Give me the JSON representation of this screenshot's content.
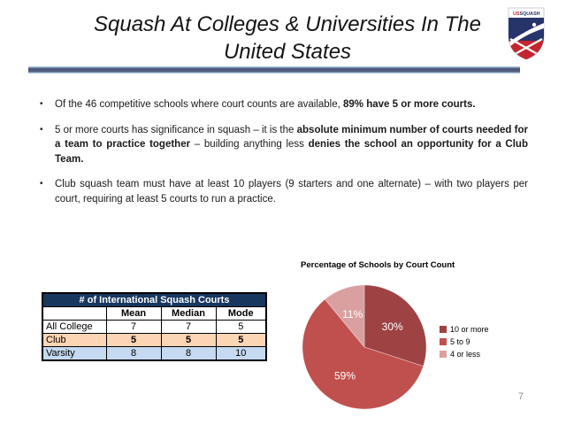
{
  "slide": {
    "title_line1": "Squash At Colleges & Universities In The",
    "title_line2": "United States",
    "bullet_char": "•",
    "page_number": "7"
  },
  "logo": {
    "us": "US",
    "squash": "SQUASH"
  },
  "bullets": [
    {
      "seg0": "Of the 46 competitive schools where court counts are available, ",
      "seg1": "89% have 5 or more courts."
    },
    {
      "seg0": "5 or more courts has significance in squash – it is the ",
      "seg1": "absolute minimum number of courts needed for a team to practice together",
      "seg2": " – building anything less ",
      "seg3": "denies the school an opportunity for a Club Team."
    },
    {
      "seg0": "Club squash team must have at least 10 players (9 starters and one alternate) – with two players per court, requiring at least 5 courts to run a practice."
    }
  ],
  "table": {
    "title": "# of International Squash Courts",
    "columns": [
      "Mean",
      "Median",
      "Mode"
    ],
    "rows": [
      {
        "label": "All College",
        "mean": "7",
        "median": "7",
        "mode": "5"
      },
      {
        "label": "Club",
        "mean": "5",
        "median": "5",
        "mode": "5"
      },
      {
        "label": "Varsity",
        "mean": "8",
        "median": "8",
        "mode": "10"
      }
    ]
  },
  "chart_data": {
    "type": "pie",
    "title": "Percentage of Schools by Court Count",
    "labels": [
      "10 or more",
      "5 to 9",
      "4 or less"
    ],
    "values": [
      30,
      59,
      11
    ],
    "data_labels": [
      "30%",
      "59%",
      "11%"
    ],
    "colors": [
      "#9E4244",
      "#C0504D",
      "#D9A09F"
    ],
    "legend_position": "right",
    "start_angle": "12 o'clock",
    "direction": "clockwise"
  },
  "colors": {
    "divider_dark": "#4F5B7D",
    "divider_light": "#A8C2DD",
    "table_header_bg": "#17375E",
    "row_peach_bg": "#FCD5B4",
    "row_blue_bg": "#C5D9F1",
    "logo_navy": "#27336B",
    "logo_red": "#C5262E",
    "page_number_gray": "#8C8C8C"
  }
}
